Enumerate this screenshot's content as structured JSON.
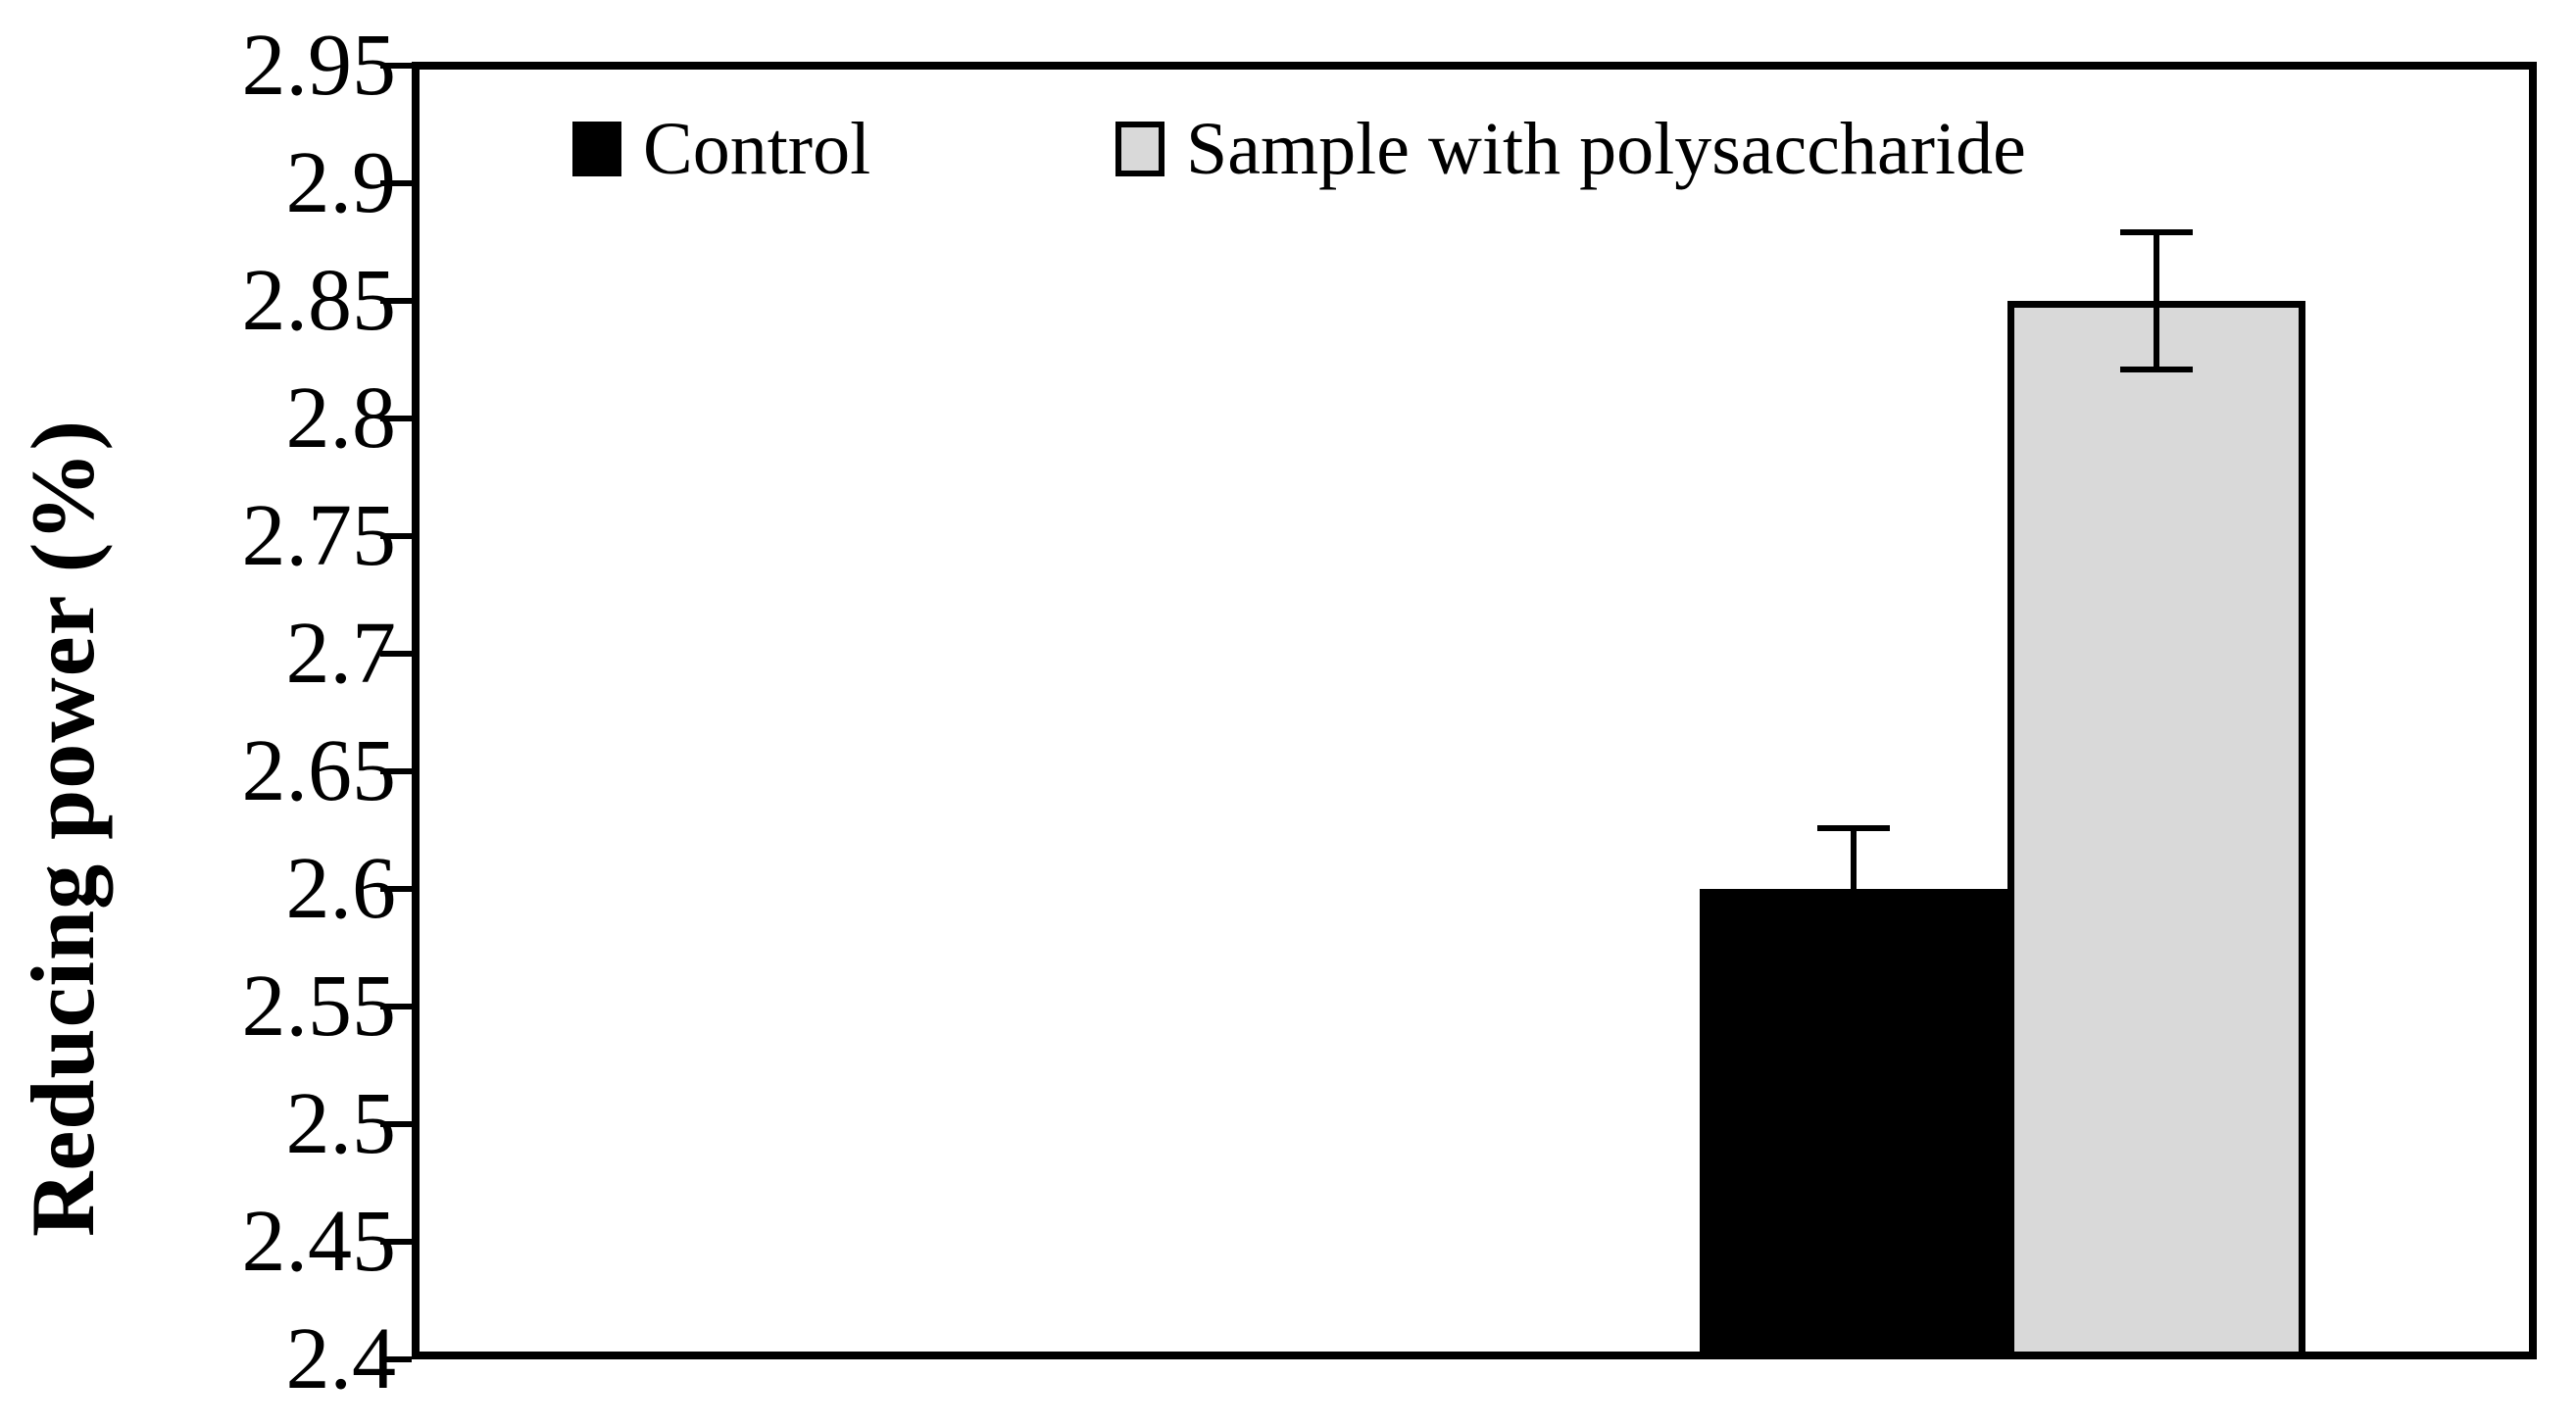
{
  "figure": {
    "background": "#ffffff",
    "axis_color": "#000000",
    "error_bar_color": "#000000"
  },
  "chart_data": {
    "type": "bar",
    "title": "",
    "xlabel": "",
    "ylabel": "Reducing power (%)",
    "ylim": [
      2.4,
      2.95
    ],
    "ytick_step": 0.05,
    "yticks": [
      2.95,
      2.9,
      2.85,
      2.8,
      2.75,
      2.7,
      2.65,
      2.6,
      2.55,
      2.5,
      2.45,
      2.4
    ],
    "grid": false,
    "legend_position": "top-inside",
    "categories": [
      ""
    ],
    "series": [
      {
        "name": "Control",
        "values": [
          2.6
        ],
        "error": [
          0.026
        ],
        "color": "#000000",
        "border_color": "#000000"
      },
      {
        "name": "Sample with polysaccharide",
        "values": [
          2.85
        ],
        "error": [
          0.029
        ],
        "color": "#d9d9d9",
        "border_color": "#000000"
      }
    ]
  }
}
